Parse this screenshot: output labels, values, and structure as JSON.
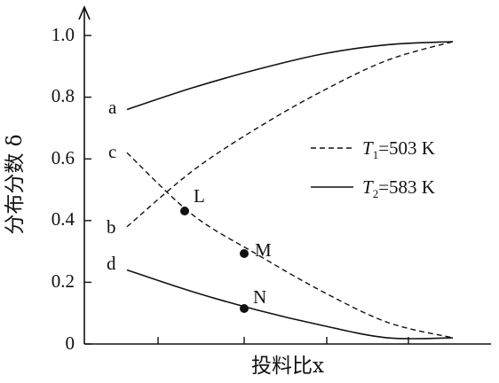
{
  "chart_data": {
    "type": "line",
    "ylabel": "分布分数 δ",
    "xlabel": "投料比x",
    "ylim": [
      0,
      1.0
    ],
    "y_ticks": [
      "0",
      "0.2",
      "0.4",
      "0.6",
      "0.8",
      "1.0"
    ],
    "y_tick_values": [
      0,
      0.2,
      0.4,
      0.6,
      0.8,
      1.0
    ],
    "grid": false,
    "legend": {
      "placement": "right",
      "entries": [
        {
          "style": "dashed",
          "T": "T",
          "sub": "1",
          "label": "=503 K"
        },
        {
          "style": "solid",
          "T": "T",
          "sub": "2",
          "label": "=583 K"
        }
      ]
    },
    "series": [
      {
        "label": "a",
        "style": "solid",
        "color": "#111111",
        "values": [
          0.76,
          0.83,
          0.89,
          0.94,
          0.97,
          0.98
        ]
      },
      {
        "label": "b",
        "style": "dashed",
        "color": "#111111",
        "values": [
          0.38,
          0.56,
          0.7,
          0.82,
          0.92,
          0.98
        ]
      },
      {
        "label": "c",
        "style": "dashed",
        "color": "#111111",
        "values": [
          0.62,
          0.42,
          0.29,
          0.17,
          0.07,
          0.02
        ]
      },
      {
        "label": "d",
        "style": "solid",
        "color": "#111111",
        "values": [
          0.24,
          0.17,
          0.11,
          0.06,
          0.02,
          0.02
        ]
      }
    ],
    "points": [
      {
        "label": "L",
        "on": "c",
        "y": 0.42
      },
      {
        "label": "M",
        "on": "c",
        "y": 0.29
      },
      {
        "label": "N",
        "on": "d",
        "y": 0.11
      }
    ]
  }
}
